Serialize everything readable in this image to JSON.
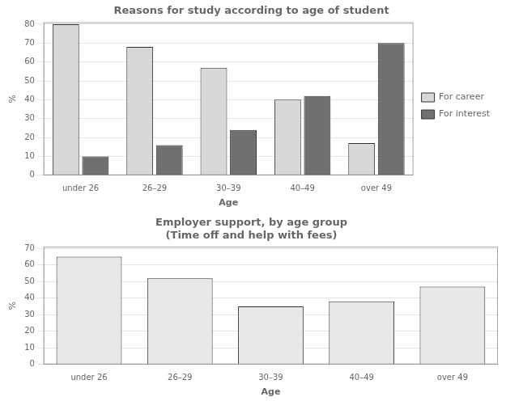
{
  "chart_data": [
    {
      "type": "bar",
      "title": "Reasons for study according to age of student",
      "categories": [
        "under 26",
        "26–29",
        "30–39",
        "40–49",
        "over 49"
      ],
      "series": [
        {
          "name": "For career",
          "color": "#d8d8d8",
          "values": [
            80,
            68,
            57,
            40,
            17
          ]
        },
        {
          "name": "For interest",
          "color": "#707070",
          "values": [
            10,
            16,
            24,
            42,
            70
          ]
        }
      ],
      "xlabel": "Age",
      "ylabel": "%",
      "ylim": [
        0,
        81
      ],
      "yticks": [
        0,
        10,
        20,
        30,
        40,
        50,
        60,
        70,
        80
      ],
      "grid": true,
      "legend": "right"
    },
    {
      "type": "bar",
      "title": "Employer support, by age group\n(Time off and help with fees)",
      "categories": [
        "under 26",
        "26–29",
        "30–39",
        "40–49",
        "over 49"
      ],
      "values": [
        65,
        52,
        35,
        38,
        47
      ],
      "color": "#e8e8e8",
      "xlabel": "Age",
      "ylabel": "%",
      "ylim": [
        0,
        71
      ],
      "yticks": [
        0,
        10,
        20,
        30,
        40,
        50,
        60,
        70
      ],
      "grid": true
    }
  ]
}
